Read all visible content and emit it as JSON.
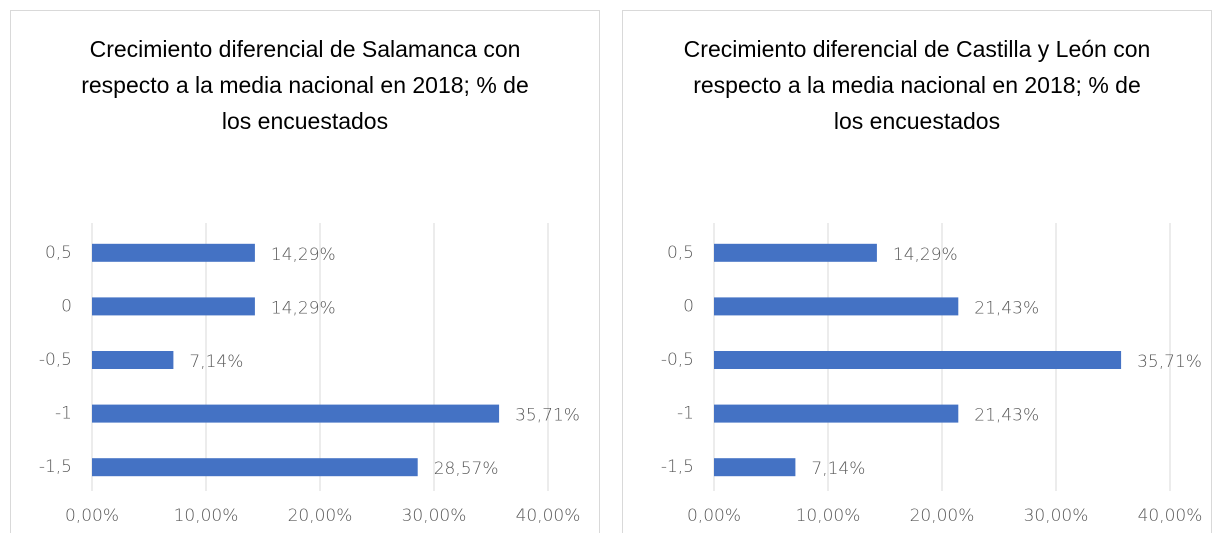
{
  "chart_data": [
    {
      "type": "bar",
      "orientation": "horizontal",
      "title": "Crecimiento diferencial de Salamanca con respecto a la media nacional en 2018; % de los encuestados",
      "categories": [
        "0,5",
        "0",
        "-0,5",
        "-1",
        "-1,5"
      ],
      "values": [
        14.29,
        14.29,
        7.14,
        35.71,
        28.57
      ],
      "value_labels": [
        "14,29%",
        "14,29%",
        "7,14%",
        "35,71%",
        "28,57%"
      ],
      "color": "#4472c4",
      "xlim": [
        0,
        40
      ],
      "xticks": [
        {
          "value": 0,
          "label": "0,00%"
        },
        {
          "value": 10,
          "label": "10,00%"
        },
        {
          "value": 20,
          "label": "20,00%"
        },
        {
          "value": 30,
          "label": "30,00%"
        },
        {
          "value": 40,
          "label": "40,00%"
        }
      ],
      "grid": true
    },
    {
      "type": "bar",
      "orientation": "horizontal",
      "title": "Crecimiento diferencial de Castilla y León con respecto a la media nacional en 2018; % de los encuestados",
      "categories": [
        "0,5",
        "0",
        "-0,5",
        "-1",
        "-1,5"
      ],
      "values": [
        14.29,
        21.43,
        35.71,
        21.43,
        7.14
      ],
      "value_labels": [
        "14,29%",
        "21,43%",
        "35,71%",
        "21,43%",
        "7,14%"
      ],
      "color": "#4472c4",
      "xlim": [
        0,
        40
      ],
      "xticks": [
        {
          "value": 0,
          "label": "0,00%"
        },
        {
          "value": 10,
          "label": "10,00%"
        },
        {
          "value": 20,
          "label": "20,00%"
        },
        {
          "value": 30,
          "label": "30,00%"
        },
        {
          "value": 40,
          "label": "40,00%"
        }
      ],
      "grid": true
    }
  ]
}
